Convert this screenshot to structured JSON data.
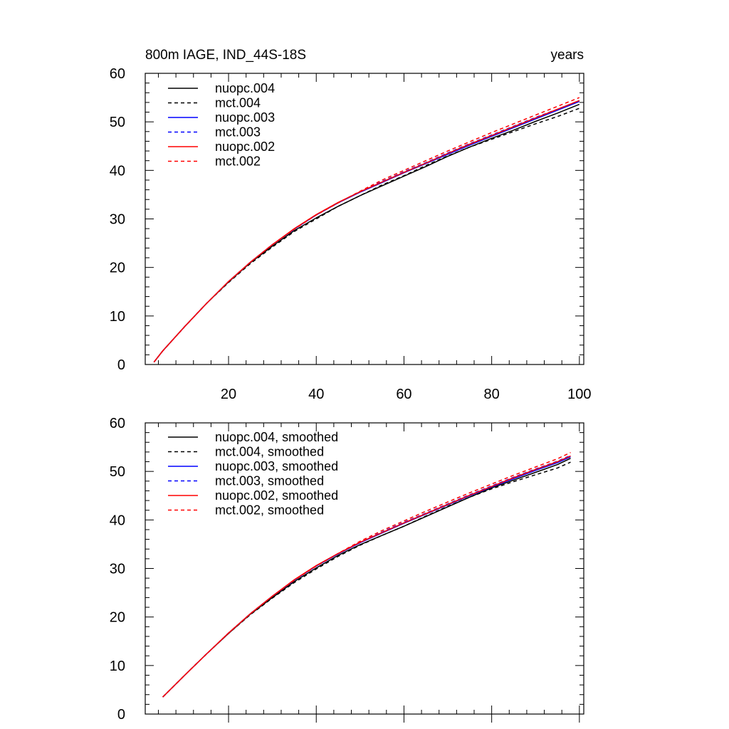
{
  "chart_data": [
    {
      "type": "line",
      "title": "800m IAGE, IND_44S-18S",
      "units_label": "years",
      "xlim": [
        1,
        101
      ],
      "ylim": [
        0,
        60
      ],
      "xticks": [
        20,
        40,
        60,
        80,
        100
      ],
      "yticks": [
        0,
        10,
        20,
        30,
        40,
        50,
        60
      ],
      "xtick_labels": [
        "20",
        "40",
        "60",
        "80",
        "100"
      ],
      "ytick_labels": [
        "0",
        "10",
        "20",
        "30",
        "40",
        "50",
        "60"
      ],
      "grid": false,
      "legend_position": "top-left",
      "series": [
        {
          "name": "nuopc.004",
          "color": "#000000",
          "dash": "solid",
          "x": [
            3,
            5,
            10,
            15,
            20,
            25,
            30,
            35,
            40,
            45,
            50,
            55,
            60,
            65,
            70,
            75,
            80,
            85,
            90,
            95,
            100
          ],
          "y": [
            0.5,
            2.8,
            7.8,
            12.6,
            17.0,
            21.0,
            24.4,
            27.6,
            30.2,
            32.6,
            34.8,
            36.8,
            38.8,
            40.8,
            42.9,
            44.8,
            46.6,
            48.3,
            50.1,
            51.8,
            53.6
          ]
        },
        {
          "name": "mct.004",
          "color": "#000000",
          "dash": "dashed",
          "x": [
            3,
            5,
            10,
            15,
            20,
            25,
            30,
            35,
            40,
            45,
            50,
            55,
            60,
            65,
            70,
            75,
            80,
            85,
            90,
            95,
            100
          ],
          "y": [
            0.5,
            2.8,
            7.8,
            12.6,
            16.9,
            20.8,
            24.2,
            27.4,
            30.0,
            32.6,
            34.8,
            37.0,
            38.9,
            41.0,
            43.0,
            44.8,
            46.4,
            48.0,
            49.6,
            51.1,
            52.8
          ]
        },
        {
          "name": "nuopc.003",
          "color": "#0000ff",
          "dash": "solid",
          "x": [
            3,
            5,
            10,
            15,
            20,
            25,
            30,
            35,
            40,
            45,
            50,
            55,
            60,
            65,
            70,
            75,
            80,
            85,
            90,
            95,
            100
          ],
          "y": [
            0.5,
            2.8,
            7.8,
            12.6,
            17.1,
            21.1,
            24.7,
            27.9,
            30.8,
            33.3,
            35.5,
            37.5,
            39.5,
            41.4,
            43.3,
            45.2,
            47.0,
            48.8,
            50.6,
            52.4,
            54.2
          ]
        },
        {
          "name": "mct.003",
          "color": "#0000ff",
          "dash": "dashed",
          "x": [
            3,
            5,
            10,
            15,
            20,
            25,
            30,
            35,
            40,
            45,
            50,
            55,
            60,
            65,
            70,
            75,
            80,
            85,
            90,
            95,
            100
          ],
          "y": [
            0.5,
            2.8,
            7.8,
            12.6,
            17.1,
            21.1,
            24.7,
            27.9,
            30.8,
            33.3,
            35.6,
            37.7,
            39.7,
            41.6,
            43.6,
            45.5,
            47.3,
            49.1,
            50.9,
            52.6,
            54.4
          ]
        },
        {
          "name": "nuopc.002",
          "color": "#ff0000",
          "dash": "solid",
          "x": [
            3,
            5,
            10,
            15,
            20,
            25,
            30,
            35,
            40,
            45,
            50,
            55,
            60,
            65,
            70,
            75,
            80,
            85,
            90,
            95,
            100
          ],
          "y": [
            0.5,
            2.8,
            7.8,
            12.6,
            17.1,
            21.1,
            24.7,
            28.0,
            30.9,
            33.4,
            35.6,
            37.6,
            39.6,
            41.5,
            43.5,
            45.4,
            47.2,
            49.0,
            50.8,
            52.6,
            54.4
          ]
        },
        {
          "name": "mct.002",
          "color": "#ff0000",
          "dash": "dashed",
          "x": [
            3,
            5,
            10,
            15,
            20,
            25,
            30,
            35,
            40,
            45,
            50,
            55,
            60,
            65,
            70,
            75,
            80,
            85,
            90,
            95,
            100
          ],
          "y": [
            0.5,
            2.8,
            7.8,
            12.6,
            17.1,
            21.1,
            24.7,
            27.9,
            30.8,
            33.3,
            35.7,
            38.0,
            40.0,
            42.0,
            44.0,
            45.9,
            47.8,
            49.6,
            51.4,
            53.2,
            55.0
          ]
        }
      ]
    },
    {
      "type": "line",
      "title": "",
      "units_label": "",
      "xlim": [
        1,
        101
      ],
      "ylim": [
        0,
        60
      ],
      "xticks": [
        20,
        40,
        60,
        80,
        100
      ],
      "yticks": [
        0,
        10,
        20,
        30,
        40,
        50,
        60
      ],
      "xtick_labels": [],
      "ytick_labels": [
        "0",
        "10",
        "20",
        "30",
        "40",
        "50",
        "60"
      ],
      "grid": false,
      "legend_position": "top-left",
      "series": [
        {
          "name": "nuopc.004, smoothed",
          "color": "#000000",
          "dash": "solid",
          "x": [
            5,
            10,
            15,
            20,
            25,
            30,
            35,
            40,
            45,
            50,
            55,
            60,
            65,
            70,
            75,
            80,
            85,
            90,
            95,
            98
          ],
          "y": [
            3.5,
            8.0,
            12.4,
            16.6,
            20.6,
            24.0,
            27.3,
            30.1,
            32.7,
            34.9,
            36.8,
            38.7,
            40.7,
            42.7,
            44.7,
            46.6,
            48.2,
            49.8,
            51.4,
            52.7
          ]
        },
        {
          "name": "mct.004, smoothed",
          "color": "#000000",
          "dash": "dashed",
          "x": [
            5,
            10,
            15,
            20,
            25,
            30,
            35,
            40,
            45,
            50,
            55,
            60,
            65,
            70,
            75,
            80,
            85,
            90,
            95,
            98
          ],
          "y": [
            3.5,
            8.0,
            12.4,
            16.6,
            20.5,
            23.9,
            27.1,
            29.9,
            32.5,
            34.8,
            36.8,
            38.7,
            40.8,
            42.8,
            44.7,
            46.4,
            47.9,
            49.3,
            50.7,
            51.9
          ]
        },
        {
          "name": "nuopc.003, smoothed",
          "color": "#0000ff",
          "dash": "solid",
          "x": [
            5,
            10,
            15,
            20,
            25,
            30,
            35,
            40,
            45,
            50,
            55,
            60,
            65,
            70,
            75,
            80,
            85,
            90,
            95,
            98
          ],
          "y": [
            3.5,
            8.0,
            12.4,
            16.7,
            20.7,
            24.3,
            27.6,
            30.5,
            33.0,
            35.3,
            37.3,
            39.3,
            41.2,
            43.1,
            45.0,
            46.8,
            48.5,
            50.2,
            51.8,
            53.0
          ]
        },
        {
          "name": "mct.003, smoothed",
          "color": "#0000ff",
          "dash": "dashed",
          "x": [
            5,
            10,
            15,
            20,
            25,
            30,
            35,
            40,
            45,
            50,
            55,
            60,
            65,
            70,
            75,
            80,
            85,
            90,
            95,
            98
          ],
          "y": [
            3.5,
            8.0,
            12.4,
            16.7,
            20.7,
            24.3,
            27.6,
            30.5,
            33.0,
            35.4,
            37.5,
            39.5,
            41.4,
            43.3,
            45.2,
            47.0,
            48.8,
            50.5,
            52.1,
            53.3
          ]
        },
        {
          "name": "nuopc.002, smoothed",
          "color": "#ff0000",
          "dash": "solid",
          "x": [
            5,
            10,
            15,
            20,
            25,
            30,
            35,
            40,
            45,
            50,
            55,
            60,
            65,
            70,
            75,
            80,
            85,
            90,
            95,
            98
          ],
          "y": [
            3.5,
            8.0,
            12.4,
            16.7,
            20.7,
            24.3,
            27.7,
            30.6,
            33.1,
            35.4,
            37.4,
            39.4,
            41.3,
            43.2,
            45.1,
            46.9,
            48.7,
            50.4,
            52.0,
            53.2
          ]
        },
        {
          "name": "mct.002, smoothed",
          "color": "#ff0000",
          "dash": "dashed",
          "x": [
            5,
            10,
            15,
            20,
            25,
            30,
            35,
            40,
            45,
            50,
            55,
            60,
            65,
            70,
            75,
            80,
            85,
            90,
            95,
            98
          ],
          "y": [
            3.5,
            8.0,
            12.4,
            16.7,
            20.7,
            24.3,
            27.6,
            30.5,
            33.1,
            35.6,
            37.8,
            39.8,
            41.8,
            43.7,
            45.6,
            47.4,
            49.2,
            50.9,
            52.6,
            53.9
          ]
        }
      ]
    }
  ]
}
